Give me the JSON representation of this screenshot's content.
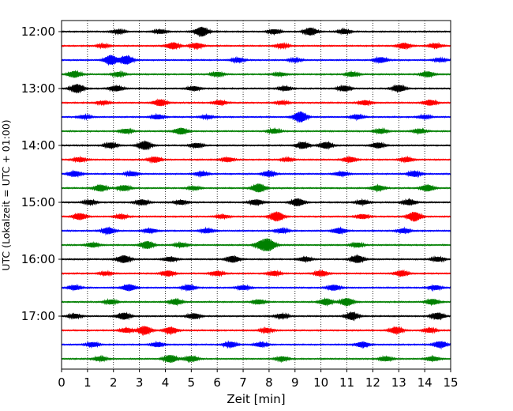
{
  "chart_data": {
    "type": "line",
    "title": "",
    "xlabel": "Zeit  [min]",
    "ylabel": "UTC (Lokalzeit = UTC + 01:00)",
    "xlim": [
      0,
      15
    ],
    "x_ticks": [
      0,
      1,
      2,
      3,
      4,
      5,
      6,
      7,
      8,
      9,
      10,
      11,
      12,
      13,
      14,
      15
    ],
    "y_tick_labels": [
      "12:00",
      "13:00",
      "14:00",
      "15:00",
      "16:00",
      "17:00"
    ],
    "grid": true,
    "colors_cycle": [
      "#000000",
      "#ff0000",
      "#0000ff",
      "#008000"
    ],
    "series": [
      {
        "start": "12:00",
        "bursts": [
          [
            2.2,
            0.35
          ],
          [
            3.8,
            0.35
          ],
          [
            5.4,
            0.9
          ],
          [
            8.2,
            0.4
          ],
          [
            9.6,
            0.7
          ],
          [
            10.9,
            0.4
          ]
        ]
      },
      {
        "start": "12:15",
        "bursts": [
          [
            1.6,
            0.3
          ],
          [
            4.3,
            0.6
          ],
          [
            5.2,
            0.5
          ],
          [
            8.5,
            0.4
          ],
          [
            13.2,
            0.5
          ],
          [
            14.4,
            0.4
          ]
        ]
      },
      {
        "start": "12:30",
        "bursts": [
          [
            1.9,
            0.9
          ],
          [
            2.5,
            0.8
          ],
          [
            6.8,
            0.4
          ],
          [
            9.0,
            0.3
          ],
          [
            12.3,
            0.5
          ],
          [
            14.6,
            0.3
          ]
        ]
      },
      {
        "start": "12:45",
        "bursts": [
          [
            0.5,
            0.6
          ],
          [
            2.2,
            0.4
          ],
          [
            6.0,
            0.4
          ],
          [
            8.4,
            0.3
          ],
          [
            11.2,
            0.4
          ],
          [
            14.1,
            0.5
          ]
        ]
      },
      {
        "start": "13:00",
        "bursts": [
          [
            0.6,
            0.8
          ],
          [
            2.1,
            0.5
          ],
          [
            5.1,
            0.4
          ],
          [
            8.6,
            0.4
          ],
          [
            10.9,
            0.5
          ],
          [
            13.0,
            0.6
          ]
        ]
      },
      {
        "start": "13:15",
        "bursts": [
          [
            1.6,
            0.3
          ],
          [
            3.8,
            0.6
          ],
          [
            6.1,
            0.4
          ],
          [
            8.5,
            0.3
          ],
          [
            11.7,
            0.4
          ],
          [
            14.2,
            0.5
          ]
        ]
      },
      {
        "start": "13:30",
        "bursts": [
          [
            0.9,
            0.3
          ],
          [
            3.7,
            0.4
          ],
          [
            5.6,
            0.3
          ],
          [
            9.2,
            1.0
          ],
          [
            11.4,
            0.4
          ],
          [
            14.0,
            0.3
          ]
        ]
      },
      {
        "start": "13:45",
        "bursts": [
          [
            2.5,
            0.4
          ],
          [
            4.6,
            0.6
          ],
          [
            8.2,
            0.4
          ],
          [
            12.3,
            0.4
          ],
          [
            13.8,
            0.4
          ]
        ]
      },
      {
        "start": "14:00",
        "bursts": [
          [
            1.9,
            0.5
          ],
          [
            3.2,
            0.8
          ],
          [
            5.2,
            0.4
          ],
          [
            9.3,
            0.6
          ],
          [
            10.2,
            0.6
          ],
          [
            12.2,
            0.5
          ]
        ]
      },
      {
        "start": "14:15",
        "bursts": [
          [
            0.7,
            0.4
          ],
          [
            3.6,
            0.5
          ],
          [
            6.4,
            0.4
          ],
          [
            8.7,
            0.3
          ],
          [
            11.1,
            0.5
          ],
          [
            13.3,
            0.4
          ]
        ]
      },
      {
        "start": "14:30",
        "bursts": [
          [
            0.5,
            0.5
          ],
          [
            2.7,
            0.4
          ],
          [
            5.4,
            0.4
          ],
          [
            8.0,
            0.5
          ],
          [
            10.8,
            0.4
          ],
          [
            13.6,
            0.5
          ]
        ]
      },
      {
        "start": "14:45",
        "bursts": [
          [
            1.5,
            0.6
          ],
          [
            2.4,
            0.5
          ],
          [
            5.1,
            0.3
          ],
          [
            7.6,
            0.8
          ],
          [
            12.2,
            0.5
          ],
          [
            14.1,
            0.6
          ]
        ]
      },
      {
        "start": "15:00",
        "bursts": [
          [
            1.1,
            0.4
          ],
          [
            3.1,
            0.5
          ],
          [
            4.6,
            0.4
          ],
          [
            7.5,
            0.5
          ],
          [
            9.1,
            0.7
          ],
          [
            11.6,
            0.4
          ],
          [
            13.4,
            0.5
          ]
        ]
      },
      {
        "start": "15:15",
        "bursts": [
          [
            0.7,
            0.6
          ],
          [
            2.3,
            0.4
          ],
          [
            6.2,
            0.3
          ],
          [
            8.3,
            0.9
          ],
          [
            11.6,
            0.4
          ],
          [
            13.6,
            0.9
          ]
        ]
      },
      {
        "start": "15:30",
        "bursts": [
          [
            1.8,
            0.6
          ],
          [
            3.4,
            0.4
          ],
          [
            5.6,
            0.4
          ],
          [
            8.5,
            0.4
          ],
          [
            10.7,
            0.5
          ],
          [
            13.2,
            0.4
          ]
        ]
      },
      {
        "start": "15:45",
        "bursts": [
          [
            1.2,
            0.4
          ],
          [
            3.3,
            0.7
          ],
          [
            4.6,
            0.4
          ],
          [
            7.7,
            0.7
          ],
          [
            8.0,
            1.0
          ],
          [
            11.4,
            0.4
          ]
        ]
      },
      {
        "start": "16:00",
        "bursts": [
          [
            2.4,
            0.7
          ],
          [
            4.2,
            0.4
          ],
          [
            6.6,
            0.6
          ],
          [
            9.4,
            0.4
          ],
          [
            11.4,
            0.7
          ],
          [
            14.5,
            0.4
          ]
        ]
      },
      {
        "start": "16:15",
        "bursts": [
          [
            1.7,
            0.3
          ],
          [
            4.1,
            0.5
          ],
          [
            6.0,
            0.4
          ],
          [
            8.2,
            0.4
          ],
          [
            10.0,
            0.5
          ],
          [
            13.1,
            0.5
          ]
        ]
      },
      {
        "start": "16:30",
        "bursts": [
          [
            0.5,
            0.4
          ],
          [
            2.6,
            0.6
          ],
          [
            4.9,
            0.5
          ],
          [
            7.0,
            0.4
          ],
          [
            10.5,
            0.5
          ],
          [
            14.4,
            0.4
          ]
        ]
      },
      {
        "start": "16:45",
        "bursts": [
          [
            1.9,
            0.4
          ],
          [
            4.4,
            0.5
          ],
          [
            7.6,
            0.4
          ],
          [
            10.2,
            0.6
          ],
          [
            11.0,
            0.7
          ],
          [
            14.3,
            0.5
          ]
        ]
      },
      {
        "start": "17:00",
        "bursts": [
          [
            0.5,
            0.4
          ],
          [
            2.4,
            0.6
          ],
          [
            5.1,
            0.5
          ],
          [
            8.5,
            0.4
          ],
          [
            11.2,
            0.7
          ],
          [
            14.5,
            0.6
          ]
        ]
      },
      {
        "start": "17:15",
        "bursts": [
          [
            2.5,
            0.4
          ],
          [
            3.2,
            0.8
          ],
          [
            4.2,
            0.6
          ],
          [
            7.9,
            0.4
          ],
          [
            12.9,
            0.6
          ],
          [
            14.2,
            0.4
          ]
        ]
      },
      {
        "start": "17:30",
        "bursts": [
          [
            1.2,
            0.4
          ],
          [
            3.7,
            0.4
          ],
          [
            6.5,
            0.5
          ],
          [
            7.7,
            0.4
          ],
          [
            11.6,
            0.5
          ],
          [
            14.6,
            0.6
          ]
        ]
      },
      {
        "start": "17:45",
        "bursts": [
          [
            1.5,
            0.4
          ],
          [
            4.2,
            0.7
          ],
          [
            5.0,
            0.5
          ],
          [
            8.5,
            0.4
          ],
          [
            12.5,
            0.4
          ],
          [
            14.3,
            0.4
          ]
        ]
      }
    ]
  }
}
